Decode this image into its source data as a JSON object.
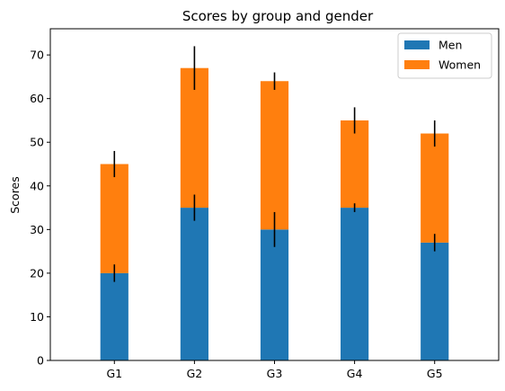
{
  "chart_data": {
    "type": "bar",
    "stacked": true,
    "title": "Scores by group and gender",
    "xlabel": "",
    "ylabel": "Scores",
    "categories": [
      "G1",
      "G2",
      "G3",
      "G4",
      "G5"
    ],
    "series": [
      {
        "name": "Men",
        "values": [
          20,
          35,
          30,
          35,
          27
        ],
        "errors": [
          2,
          3,
          4,
          1,
          2
        ],
        "color": "#1f77b4"
      },
      {
        "name": "Women",
        "values": [
          25,
          32,
          34,
          20,
          25
        ],
        "errors": [
          3,
          5,
          2,
          3,
          3
        ],
        "color": "#ff7f0e"
      }
    ],
    "ylim": [
      0,
      76
    ],
    "yticks": [
      0,
      10,
      20,
      30,
      40,
      50,
      60,
      70
    ],
    "legend_position": "top-right",
    "grid": false
  }
}
